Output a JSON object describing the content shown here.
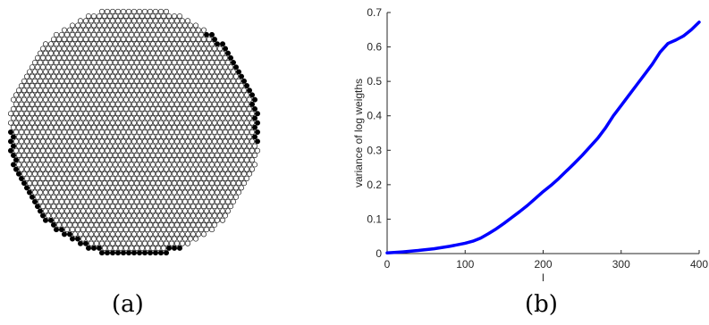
{
  "captions": {
    "a": "(a)",
    "b": "(b)"
  },
  "colors": {
    "empty_node": "#ffffff",
    "filled_node": "#000000",
    "line": "#0000ff",
    "axis": "#262626"
  },
  "chart_data": [
    {
      "type": "scatter",
      "panel": "a",
      "description_marks": "hexagonal lattice of nodes inside a disk; boundary nodes on the right arc and lower-left arc are filled black, all others hollow",
      "title": "",
      "xlabel": "",
      "ylabel": "",
      "grid": false
    },
    {
      "type": "line",
      "panel": "b",
      "title": "",
      "xlabel": "l",
      "ylabel": "variance of log weigths",
      "xlim": [
        0,
        400
      ],
      "ylim": [
        0,
        0.7
      ],
      "xticks": [
        "0",
        "100",
        "200",
        "300",
        "400"
      ],
      "yticks": [
        "0",
        "0.1",
        "0.2",
        "0.3",
        "0.4",
        "0.5",
        "0.6",
        "0.7"
      ],
      "grid": false,
      "series": [
        {
          "x": [
            0,
            20,
            40,
            60,
            80,
            100,
            110,
            120,
            130,
            140,
            150,
            160,
            170,
            180,
            190,
            200,
            210,
            220,
            230,
            240,
            250,
            260,
            270,
            280,
            290,
            300,
            310,
            320,
            330,
            340,
            350,
            360,
            370,
            380,
            390,
            400
          ],
          "values": [
            0.002,
            0.005,
            0.009,
            0.014,
            0.021,
            0.03,
            0.036,
            0.045,
            0.058,
            0.072,
            0.088,
            0.105,
            0.122,
            0.14,
            0.16,
            0.18,
            0.198,
            0.218,
            0.24,
            0.262,
            0.285,
            0.31,
            0.335,
            0.365,
            0.4,
            0.43,
            0.46,
            0.49,
            0.52,
            0.55,
            0.585,
            0.61,
            0.62,
            0.632,
            0.65,
            0.672
          ]
        }
      ]
    }
  ]
}
